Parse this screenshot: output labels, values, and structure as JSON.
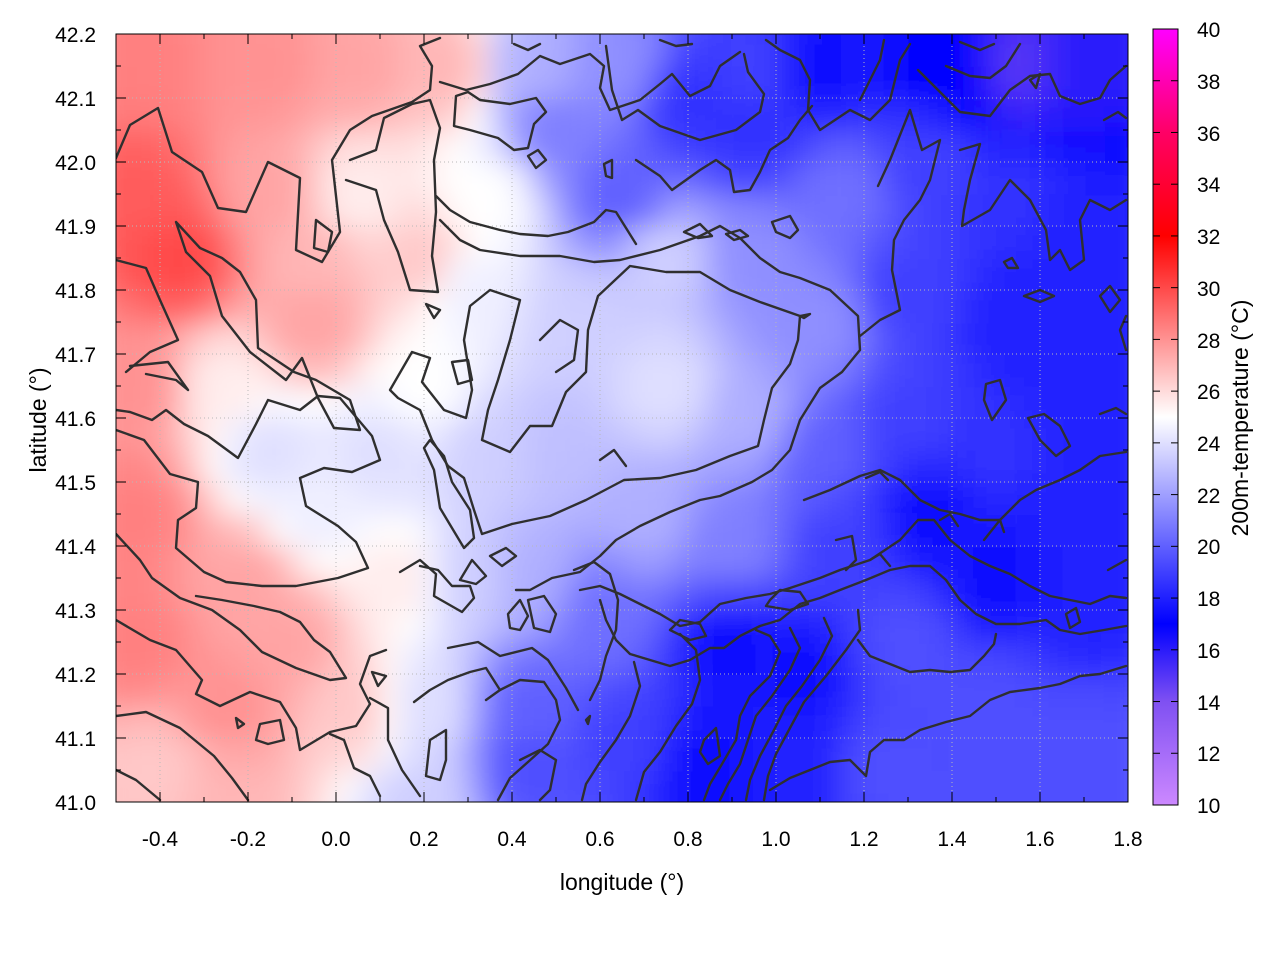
{
  "chart_data": {
    "type": "heatmap",
    "title": "",
    "xlabel": "longitude (°)",
    "ylabel": "latitude (°)",
    "colorbar_label": "200m-temperature (°C)",
    "xlim": [
      -0.5,
      1.8
    ],
    "ylim": [
      41.0,
      42.2
    ],
    "x_ticks": [
      -0.4,
      -0.2,
      0.0,
      0.2,
      0.4,
      0.6,
      0.8,
      1.0,
      1.2,
      1.4,
      1.6,
      1.8
    ],
    "x_tick_labels": [
      "-0.4",
      "-0.2",
      "0.0",
      "0.2",
      "0.4",
      "0.6",
      "0.8",
      "1.0",
      "1.2",
      "1.4",
      "1.6",
      "1.8"
    ],
    "y_ticks": [
      41.0,
      41.1,
      41.2,
      41.3,
      41.4,
      41.5,
      41.6,
      41.7,
      41.8,
      41.9,
      42.0,
      42.1,
      42.2
    ],
    "y_tick_labels": [
      "41.0",
      "41.1",
      "41.2",
      "41.3",
      "41.4",
      "41.5",
      "41.6",
      "41.7",
      "41.8",
      "41.9",
      "42.0",
      "42.1",
      "42.2"
    ],
    "colorbar_range": [
      10,
      40
    ],
    "colorbar_ticks": [
      10,
      12,
      14,
      16,
      18,
      20,
      22,
      24,
      26,
      28,
      30,
      32,
      34,
      36,
      38,
      40
    ],
    "colorbar_tick_labels": [
      "10",
      "12",
      "14",
      "16",
      "18",
      "20",
      "22",
      "24",
      "26",
      "28",
      "30",
      "32",
      "34",
      "36",
      "38",
      "40"
    ],
    "colormap": [
      {
        "value": 10,
        "color": "#cc88ff"
      },
      {
        "value": 14,
        "color": "#7f50f2"
      },
      {
        "value": 17,
        "color": "#0000ff"
      },
      {
        "value": 25,
        "color": "#ffffff"
      },
      {
        "value": 32,
        "color": "#ff0000"
      },
      {
        "value": 36,
        "color": "#ff0066"
      },
      {
        "value": 40,
        "color": "#ff00ff"
      }
    ],
    "grid": true,
    "contours": true,
    "temperature_samples": [
      {
        "lon": -0.45,
        "lat": 42.15,
        "t": 28.5
      },
      {
        "lon": -0.45,
        "lat": 41.95,
        "t": 29.5
      },
      {
        "lon": -0.35,
        "lat": 41.85,
        "t": 30.0
      },
      {
        "lon": -0.45,
        "lat": 41.65,
        "t": 28.0
      },
      {
        "lon": -0.45,
        "lat": 41.45,
        "t": 28.5
      },
      {
        "lon": -0.45,
        "lat": 41.25,
        "t": 28.5
      },
      {
        "lon": -0.4,
        "lat": 41.05,
        "t": 26.5
      },
      {
        "lon": -0.25,
        "lat": 41.15,
        "t": 28.0
      },
      {
        "lon": -0.2,
        "lat": 41.35,
        "t": 27.5
      },
      {
        "lon": -0.1,
        "lat": 41.25,
        "t": 27.5
      },
      {
        "lon": 0.05,
        "lat": 41.15,
        "t": 26.5
      },
      {
        "lon": -0.15,
        "lat": 42.15,
        "t": 28.0
      },
      {
        "lon": 0.05,
        "lat": 42.15,
        "t": 27.5
      },
      {
        "lon": 0.25,
        "lat": 42.15,
        "t": 27.0
      },
      {
        "lon": -0.15,
        "lat": 41.95,
        "t": 27.5
      },
      {
        "lon": -0.05,
        "lat": 41.75,
        "t": 27.5
      },
      {
        "lon": -0.05,
        "lat": 41.85,
        "t": 27.0
      },
      {
        "lon": -0.25,
        "lat": 41.65,
        "t": 25.5
      },
      {
        "lon": -0.15,
        "lat": 41.55,
        "t": 24.0
      },
      {
        "lon": -0.05,
        "lat": 41.45,
        "t": 24.5
      },
      {
        "lon": 0.1,
        "lat": 41.55,
        "t": 24.0
      },
      {
        "lon": 0.05,
        "lat": 41.95,
        "t": 25.5
      },
      {
        "lon": 0.2,
        "lat": 41.85,
        "t": 26.5
      },
      {
        "lon": 0.2,
        "lat": 41.65,
        "t": 25.0
      },
      {
        "lon": 0.35,
        "lat": 41.95,
        "t": 25.0
      },
      {
        "lon": 0.3,
        "lat": 41.8,
        "t": 24.5
      },
      {
        "lon": 0.35,
        "lat": 41.55,
        "t": 23.5
      },
      {
        "lon": 0.3,
        "lat": 41.35,
        "t": 23.5
      },
      {
        "lon": 0.15,
        "lat": 41.35,
        "t": 25.5
      },
      {
        "lon": 0.2,
        "lat": 41.15,
        "t": 24.0
      },
      {
        "lon": 0.45,
        "lat": 41.15,
        "t": 20.0
      },
      {
        "lon": 0.45,
        "lat": 41.05,
        "t": 19.5
      },
      {
        "lon": 0.45,
        "lat": 41.35,
        "t": 22.5
      },
      {
        "lon": 0.5,
        "lat": 41.55,
        "t": 23.0
      },
      {
        "lon": 0.55,
        "lat": 41.75,
        "t": 23.5
      },
      {
        "lon": 0.5,
        "lat": 42.05,
        "t": 21.0
      },
      {
        "lon": 0.45,
        "lat": 42.15,
        "t": 22.5
      },
      {
        "lon": 0.65,
        "lat": 42.15,
        "t": 21.5
      },
      {
        "lon": 0.65,
        "lat": 41.95,
        "t": 20.0
      },
      {
        "lon": 0.8,
        "lat": 42.1,
        "t": 18.5
      },
      {
        "lon": 0.75,
        "lat": 41.85,
        "t": 23.5
      },
      {
        "lon": 0.75,
        "lat": 41.65,
        "t": 24.0
      },
      {
        "lon": 0.7,
        "lat": 41.45,
        "t": 22.5
      },
      {
        "lon": 0.6,
        "lat": 41.3,
        "t": 20.5
      },
      {
        "lon": 0.65,
        "lat": 41.1,
        "t": 19.0
      },
      {
        "lon": 0.85,
        "lat": 41.05,
        "t": 17.5
      },
      {
        "lon": 0.9,
        "lat": 41.25,
        "t": 17.5
      },
      {
        "lon": 0.9,
        "lat": 41.4,
        "t": 21.0
      },
      {
        "lon": 0.95,
        "lat": 41.6,
        "t": 22.5
      },
      {
        "lon": 0.95,
        "lat": 41.85,
        "t": 21.5
      },
      {
        "lon": 0.95,
        "lat": 42.05,
        "t": 18.5
      },
      {
        "lon": 0.95,
        "lat": 42.15,
        "t": 19.0
      },
      {
        "lon": 1.1,
        "lat": 42.15,
        "t": 17.5
      },
      {
        "lon": 1.15,
        "lat": 41.95,
        "t": 20.5
      },
      {
        "lon": 1.1,
        "lat": 41.75,
        "t": 21.5
      },
      {
        "lon": 1.1,
        "lat": 41.55,
        "t": 20.0
      },
      {
        "lon": 1.15,
        "lat": 41.4,
        "t": 19.0
      },
      {
        "lon": 1.05,
        "lat": 41.2,
        "t": 17.5
      },
      {
        "lon": 1.05,
        "lat": 41.05,
        "t": 18.0
      },
      {
        "lon": 1.25,
        "lat": 41.05,
        "t": 19.5
      },
      {
        "lon": 1.3,
        "lat": 41.25,
        "t": 19.5
      },
      {
        "lon": 1.35,
        "lat": 41.45,
        "t": 17.5
      },
      {
        "lon": 1.3,
        "lat": 41.6,
        "t": 19.0
      },
      {
        "lon": 1.3,
        "lat": 41.8,
        "t": 19.0
      },
      {
        "lon": 1.35,
        "lat": 42.0,
        "t": 19.0
      },
      {
        "lon": 1.4,
        "lat": 42.15,
        "t": 17.0
      },
      {
        "lon": 1.55,
        "lat": 42.15,
        "t": 15.0
      },
      {
        "lon": 1.7,
        "lat": 42.15,
        "t": 16.0
      },
      {
        "lon": 1.55,
        "lat": 41.95,
        "t": 18.5
      },
      {
        "lon": 1.7,
        "lat": 41.9,
        "t": 18.0
      },
      {
        "lon": 1.55,
        "lat": 41.75,
        "t": 18.0
      },
      {
        "lon": 1.7,
        "lat": 41.65,
        "t": 18.0
      },
      {
        "lon": 1.5,
        "lat": 41.55,
        "t": 18.5
      },
      {
        "lon": 1.65,
        "lat": 41.45,
        "t": 18.0
      },
      {
        "lon": 1.5,
        "lat": 41.35,
        "t": 17.5
      },
      {
        "lon": 1.7,
        "lat": 41.3,
        "t": 18.0
      },
      {
        "lon": 1.5,
        "lat": 41.15,
        "t": 19.5
      },
      {
        "lon": 1.7,
        "lat": 41.1,
        "t": 19.5
      },
      {
        "lon": 1.75,
        "lat": 41.0,
        "t": 19.5
      },
      {
        "lon": 1.45,
        "lat": 41.0,
        "t": 19.5
      },
      {
        "lon": 0.2,
        "lat": 41.0,
        "t": 23.5
      },
      {
        "lon": -0.25,
        "lat": 41.0,
        "t": 27.0
      }
    ]
  }
}
